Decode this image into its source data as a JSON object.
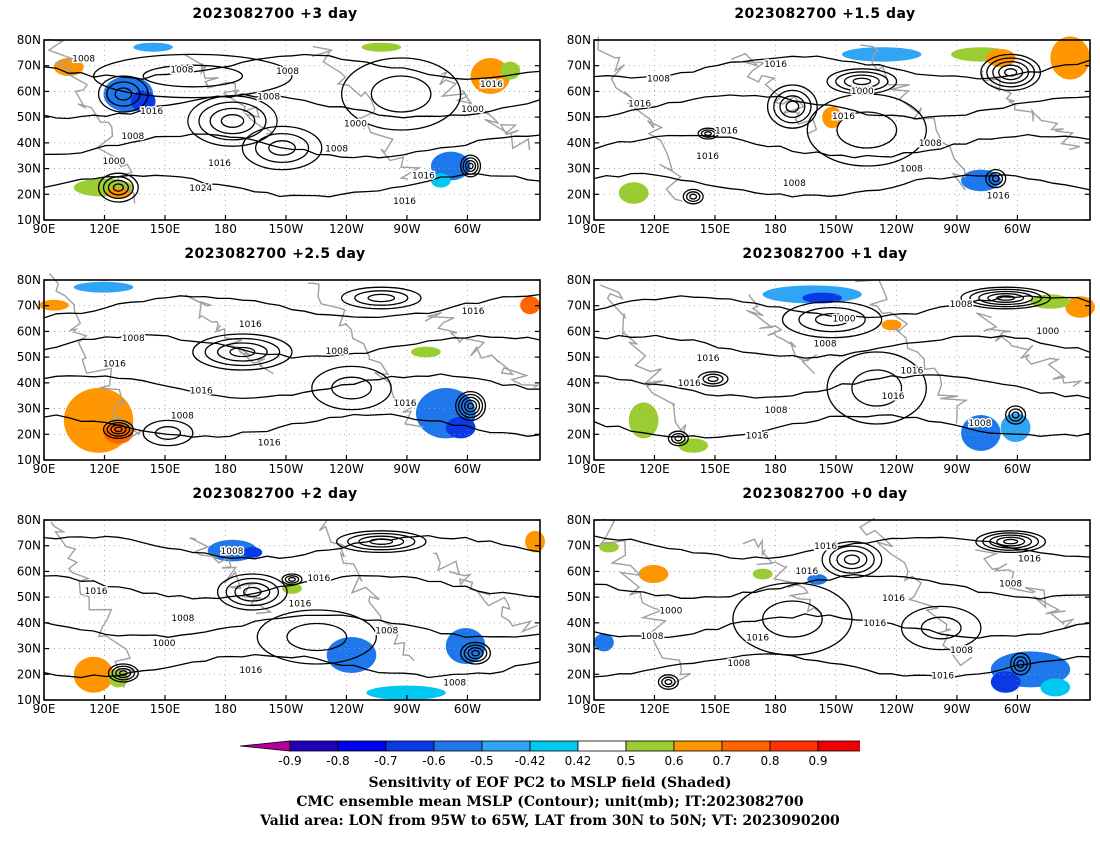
{
  "panels": [
    {
      "title": "2023082700 +3 day",
      "contour_labels": [
        "1008",
        "1016",
        "1016",
        "1008",
        "1000",
        "1016",
        "1016",
        "1008",
        "1024",
        "1008",
        "1008",
        "1016",
        "1000",
        "1000",
        "1008"
      ]
    },
    {
      "title": "2023082700 +1.5 day",
      "contour_labels": [
        "1008",
        "1016",
        "1008",
        "1000",
        "1008",
        "1016",
        "1016",
        "1016",
        "1016",
        "1016",
        "1008"
      ]
    },
    {
      "title": "2023082700 +2.5 day",
      "contour_labels": [
        "1008",
        "1016",
        "1016",
        "1008",
        "1016",
        "1016",
        "1016",
        "1008",
        "1016"
      ]
    },
    {
      "title": "2023082700 +1 day",
      "contour_labels": [
        "1016",
        "1008",
        "1000",
        "1016",
        "1008",
        "1000",
        "1016",
        "1016",
        "1008",
        "1016",
        "1008"
      ]
    },
    {
      "title": "2023082700 +2 day",
      "contour_labels": [
        "1008",
        "1016",
        "1016",
        "1008",
        "1008",
        "1016",
        "1000",
        "1008",
        "1016"
      ]
    },
    {
      "title": "2023082700 +0 day",
      "contour_labels": [
        "1016",
        "1016",
        "1016",
        "1008",
        "1016",
        "1000",
        "1008",
        "1016",
        "1016",
        "1016",
        "1008",
        "1008"
      ]
    }
  ],
  "axes": {
    "lat_labels": [
      "80N",
      "70N",
      "60N",
      "50N",
      "40N",
      "30N",
      "20N",
      "10N"
    ],
    "lon_labels": [
      "90E",
      "120E",
      "150E",
      "180",
      "150W",
      "120W",
      "90W",
      "60W"
    ]
  },
  "colorbar": {
    "labels": [
      "-0.9",
      "-0.8",
      "-0.7",
      "-0.6",
      "-0.5",
      "-0.42",
      "0.42",
      "0.5",
      "0.6",
      "0.7",
      "0.8",
      "0.9"
    ],
    "colors": [
      "#b4009b",
      "#1e00b9",
      "#0000f0",
      "#0a3ae6",
      "#1e78eb",
      "#2ea5f5",
      "#00c8f0",
      "#ffffff",
      "#9bcd32",
      "#ff9600",
      "#ff6400",
      "#ff3200",
      "#f00000",
      "#ffa0c8"
    ]
  },
  "captions": [
    "Sensitivity of EOF PC2 to MSLP field (Shaded)",
    "CMC ensemble mean MSLP (Contour); unit(mb); IT:2023082700",
    "Valid area: LON from 95W to 65W, LAT from 30N to 50N; VT: 2023090200"
  ]
}
